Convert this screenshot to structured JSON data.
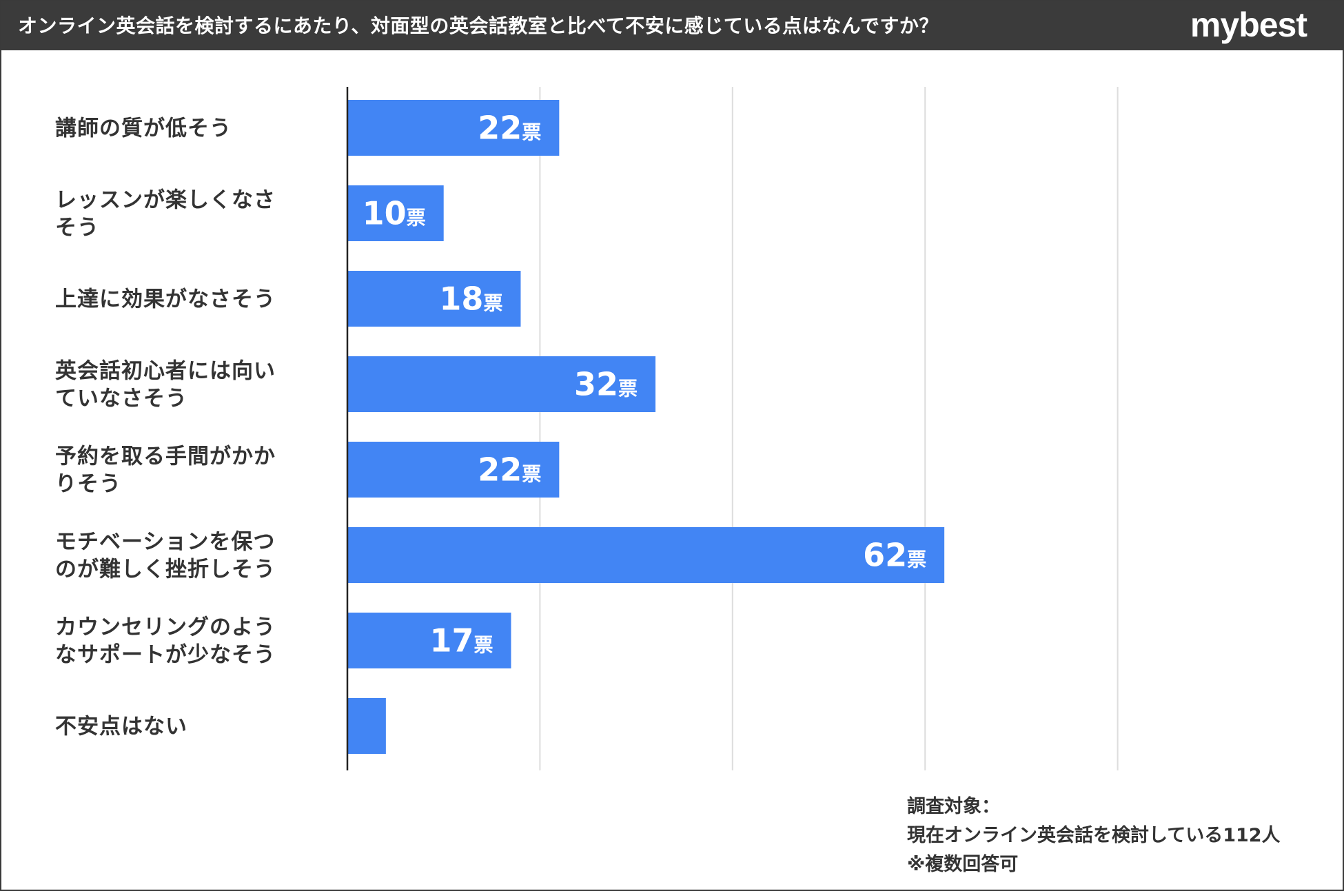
{
  "header": {
    "title": "オンライン英会話を検討するにあたり、対面型の英会話教室と比べて不安に感じている点はなんですか？",
    "brand": "mybest"
  },
  "colors": {
    "bar": "#4285f4",
    "header_bg": "#3b3b3b",
    "grid": "#dddddd",
    "axis": "#222222",
    "label_text": "#333333"
  },
  "chart_data": {
    "type": "bar",
    "orientation": "horizontal",
    "unit": "票",
    "categories": [
      [
        "講師の質が低そう"
      ],
      [
        "レッスンが楽しくなさ",
        "そう"
      ],
      [
        "上達に効果がなさそう"
      ],
      [
        "英会話初心者には向い",
        "ていなさそう"
      ],
      [
        "予約を取る手間がかか",
        "りそう"
      ],
      [
        "モチベーションを保つ",
        "のが難しく挫折しそう"
      ],
      [
        "カウンセリングのよう",
        "なサポートが少なそう"
      ],
      [
        "不安点はない"
      ]
    ],
    "values": [
      22,
      10,
      18,
      32,
      22,
      62,
      17,
      4
    ],
    "value_labels": [
      "22",
      "10",
      "18",
      "32",
      "22",
      "62",
      "17",
      ""
    ],
    "xlim": [
      0,
      80
    ],
    "grid": true,
    "grid_step": 10,
    "legend": "none"
  },
  "footnote": {
    "line1": "調査対象：",
    "line2": "現在オンライン英会話を検討している112人",
    "line3": "※複数回答可"
  }
}
